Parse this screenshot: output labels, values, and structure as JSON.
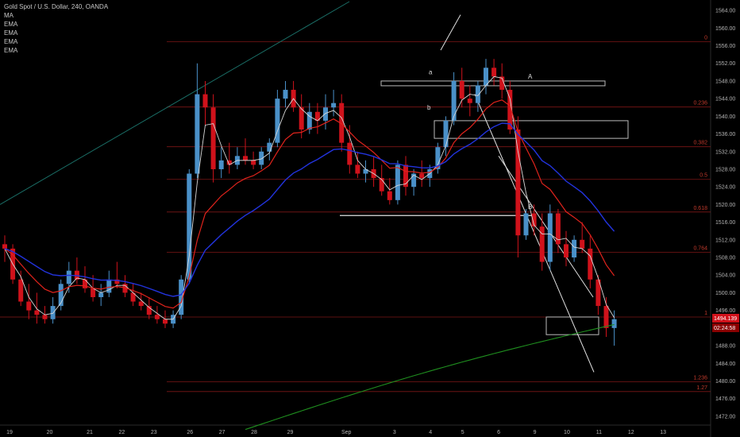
{
  "legend": {
    "title": "Gold Spot / U.S. Dollar, 240, OANDA",
    "indicators": [
      "MA",
      "EMA",
      "EMA",
      "EMA",
      "EMA"
    ]
  },
  "colors": {
    "background": "#000000",
    "bull": "#4a90c8",
    "bear": "#d0121b",
    "ma_white": "#d8d8d8",
    "ema_red": "#e0231c",
    "ema_blue": "#2233dd",
    "ema_green": "#1f8f1f",
    "channel": "#1a6e66",
    "fib": "#8b1a1a",
    "price_badge": "#d0121b",
    "timer_badge": "#8b0000"
  },
  "price_axis": {
    "ticks": [
      "1564.00",
      "1560.00",
      "1556.00",
      "1552.00",
      "1548.00",
      "1544.00",
      "1540.00",
      "1536.00",
      "1532.00",
      "1528.00",
      "1524.00",
      "1520.00",
      "1516.00",
      "1512.00",
      "1508.00",
      "1504.00",
      "1500.00",
      "1496.00",
      "1488.00",
      "1484.00",
      "1480.00",
      "1476.00",
      "1472.00"
    ],
    "current_price": "1494.139",
    "countdown": "02:24:58"
  },
  "time_axis": {
    "ticks": [
      "19",
      "20",
      "21",
      "22",
      "23",
      "26",
      "27",
      "28",
      "29",
      "Sep",
      "3",
      "4",
      "5",
      "6",
      "9",
      "10",
      "11",
      "12",
      "13"
    ]
  },
  "fib_levels": [
    {
      "label": "0",
      "price": 1556.9
    },
    {
      "label": "0.236",
      "price": 1542.1
    },
    {
      "label": "0.382",
      "price": 1533.1
    },
    {
      "label": "0.5",
      "price": 1525.7
    },
    {
      "label": "0.618",
      "price": 1518.3
    },
    {
      "label": "0.764",
      "price": 1509.2
    },
    {
      "label": "1",
      "price": 1494.5
    },
    {
      "label": "1.236",
      "price": 1479.8
    },
    {
      "label": "1.27",
      "price": 1477.6
    }
  ],
  "annotations": {
    "A": "A",
    "B": "B",
    "a": "a",
    "b": "b"
  },
  "chart_data": {
    "type": "candlestick",
    "title": "Gold Spot / U.S. Dollar, 240, OANDA",
    "ylim": [
      1470,
      1566
    ],
    "candles": [
      [
        1511,
        1513,
        1507,
        1510
      ],
      [
        1510,
        1511,
        1502,
        1503
      ],
      [
        1503,
        1505,
        1497,
        1498
      ],
      [
        1498,
        1502,
        1494,
        1496
      ],
      [
        1496,
        1500,
        1493,
        1495
      ],
      [
        1495,
        1497,
        1493,
        1494
      ],
      [
        1494,
        1499,
        1493,
        1497
      ],
      [
        1497,
        1503,
        1496,
        1502
      ],
      [
        1502,
        1507,
        1500,
        1505
      ],
      [
        1505,
        1508,
        1502,
        1503
      ],
      [
        1503,
        1506,
        1500,
        1501
      ],
      [
        1501,
        1504,
        1498,
        1499
      ],
      [
        1499,
        1502,
        1497,
        1500
      ],
      [
        1500,
        1505,
        1499,
        1503
      ],
      [
        1503,
        1507,
        1501,
        1502
      ],
      [
        1502,
        1504,
        1499,
        1500
      ],
      [
        1500,
        1502,
        1497,
        1498
      ],
      [
        1498,
        1500,
        1496,
        1497
      ],
      [
        1497,
        1499,
        1494,
        1495
      ],
      [
        1495,
        1497,
        1493,
        1494
      ],
      [
        1494,
        1496,
        1492,
        1493
      ],
      [
        1493,
        1496,
        1492,
        1495
      ],
      [
        1495,
        1504,
        1494,
        1503
      ],
      [
        1503,
        1528,
        1502,
        1527
      ],
      [
        1527,
        1552,
        1526,
        1545
      ],
      [
        1545,
        1548,
        1538,
        1542
      ],
      [
        1542,
        1545,
        1525,
        1528
      ],
      [
        1528,
        1533,
        1526,
        1530
      ],
      [
        1530,
        1534,
        1527,
        1529
      ],
      [
        1529,
        1533,
        1528,
        1531
      ],
      [
        1531,
        1535,
        1529,
        1530
      ],
      [
        1530,
        1532,
        1528,
        1529
      ],
      [
        1529,
        1533,
        1528,
        1532
      ],
      [
        1532,
        1535,
        1530,
        1534
      ],
      [
        1534,
        1546,
        1533,
        1544
      ],
      [
        1544,
        1548,
        1542,
        1546
      ],
      [
        1546,
        1548,
        1541,
        1542
      ],
      [
        1542,
        1545,
        1535,
        1537
      ],
      [
        1537,
        1543,
        1536,
        1541
      ],
      [
        1541,
        1543,
        1536,
        1539
      ],
      [
        1539,
        1545,
        1537,
        1542
      ],
      [
        1542,
        1546,
        1540,
        1543
      ],
      [
        1543,
        1545,
        1532,
        1534
      ],
      [
        1534,
        1538,
        1527,
        1529
      ],
      [
        1529,
        1532,
        1526,
        1527
      ],
      [
        1527,
        1530,
        1525,
        1528
      ],
      [
        1528,
        1531,
        1524,
        1526
      ],
      [
        1526,
        1529,
        1522,
        1523
      ],
      [
        1523,
        1526,
        1520,
        1521
      ],
      [
        1521,
        1530,
        1520,
        1529
      ],
      [
        1529,
        1531,
        1522,
        1524
      ],
      [
        1524,
        1528,
        1522,
        1527
      ],
      [
        1527,
        1530,
        1524,
        1526
      ],
      [
        1526,
        1529,
        1524,
        1528
      ],
      [
        1528,
        1534,
        1527,
        1533
      ],
      [
        1533,
        1540,
        1531,
        1539
      ],
      [
        1539,
        1550,
        1538,
        1548
      ],
      [
        1548,
        1551,
        1542,
        1544
      ],
      [
        1544,
        1547,
        1540,
        1543
      ],
      [
        1543,
        1548,
        1541,
        1547
      ],
      [
        1547,
        1553,
        1545,
        1551
      ],
      [
        1551,
        1553,
        1547,
        1549
      ],
      [
        1549,
        1552,
        1544,
        1546
      ],
      [
        1546,
        1548,
        1536,
        1537
      ],
      [
        1537,
        1540,
        1508,
        1513
      ],
      [
        1513,
        1519,
        1512,
        1518
      ],
      [
        1518,
        1520,
        1513,
        1515
      ],
      [
        1515,
        1518,
        1505,
        1507
      ],
      [
        1507,
        1520,
        1505,
        1518
      ],
      [
        1518,
        1519,
        1509,
        1511
      ],
      [
        1511,
        1514,
        1506,
        1508
      ],
      [
        1508,
        1513,
        1507,
        1512
      ],
      [
        1512,
        1516,
        1509,
        1510
      ],
      [
        1510,
        1513,
        1501,
        1503
      ],
      [
        1503,
        1504,
        1495,
        1497
      ],
      [
        1497,
        1499,
        1490,
        1492
      ],
      [
        1492,
        1496,
        1488,
        1494
      ]
    ],
    "channel_line": {
      "from_price": 1520,
      "to_price": 1566
    },
    "zones": [
      {
        "label": "A",
        "price_top": 1548,
        "price_bottom": 1547
      },
      {
        "price_top": 1539,
        "price_bottom": 1535
      }
    ]
  }
}
